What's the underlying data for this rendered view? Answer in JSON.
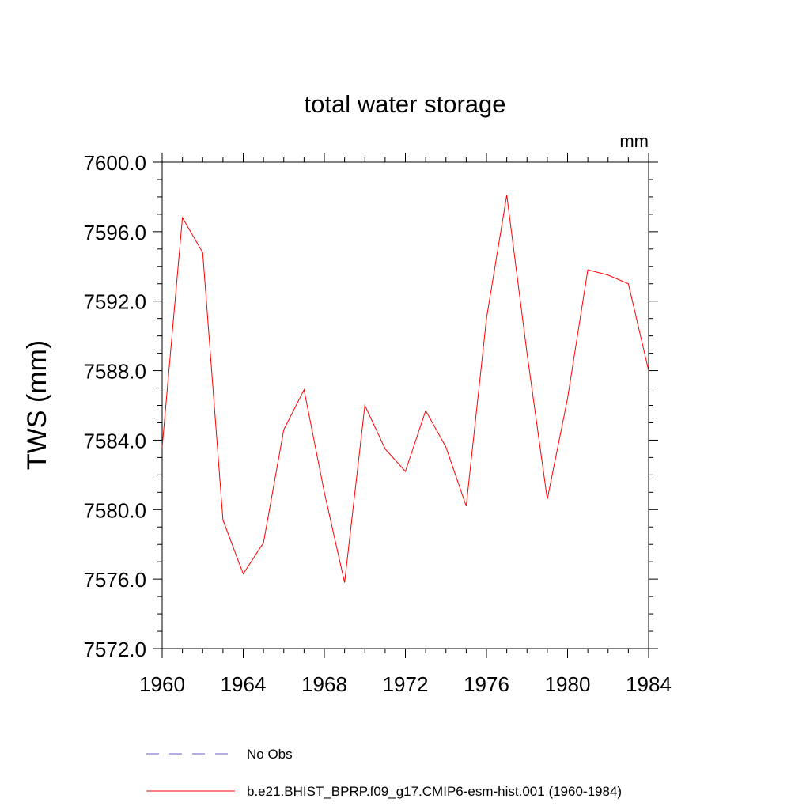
{
  "chart_data": {
    "type": "line",
    "title": "total water storage",
    "units_label": "mm",
    "ylabel": "TWS  (mm)",
    "xlabel": "",
    "xlim": [
      1960,
      1984
    ],
    "ylim": [
      7572.0,
      7600.0
    ],
    "x_ticks": [
      1960,
      1964,
      1968,
      1972,
      1976,
      1980,
      1984
    ],
    "y_ticks": [
      "7572.0",
      "7576.0",
      "7580.0",
      "7584.0",
      "7588.0",
      "7592.0",
      "7596.0",
      "7600.0"
    ],
    "x_tick_labels": [
      "1960",
      "1964",
      "1968",
      "1972",
      "1976",
      "1980",
      "1984"
    ],
    "grid": false,
    "legend_position": "bottom",
    "series": [
      {
        "name": "b.e21.BHIST_BPRP.f09_g17.CMIP6-esm-hist.001 (1960-1984)",
        "color": "#ff0000",
        "style": "solid",
        "x": [
          1960,
          1961,
          1962,
          1963,
          1964,
          1965,
          1966,
          1967,
          1968,
          1969,
          1970,
          1971,
          1972,
          1973,
          1974,
          1975,
          1976,
          1977,
          1978,
          1979,
          1980,
          1981,
          1982,
          1983,
          1984
        ],
        "y": [
          7583.6,
          7596.8,
          7594.8,
          7579.4,
          7576.3,
          7578.1,
          7584.6,
          7586.9,
          7581.0,
          7575.8,
          7586.0,
          7583.5,
          7582.2,
          7585.7,
          7583.6,
          7580.2,
          7591.0,
          7598.1,
          7589.0,
          7580.6,
          7586.4,
          7593.8,
          7593.5,
          7593.0,
          7588.0
        ]
      }
    ],
    "legend": [
      {
        "label": "No Obs",
        "color": "#6a5acd",
        "style": "dashed"
      },
      {
        "label": "b.e21.BHIST_BPRP.f09_g17.CMIP6-esm-hist.001 (1960-1984)",
        "color": "#ff0000",
        "style": "solid"
      }
    ]
  }
}
